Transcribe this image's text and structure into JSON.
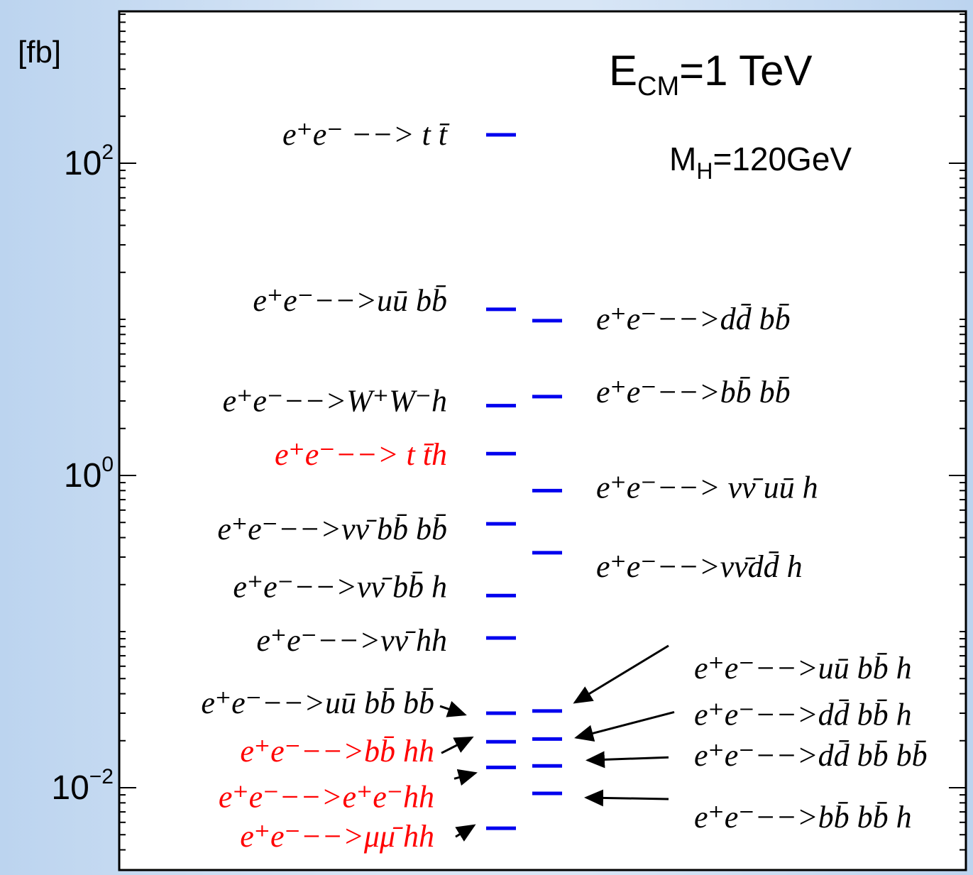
{
  "chart_data": {
    "type": "scatter",
    "yscale": "log",
    "ylim": [
      0.004,
      400
    ],
    "yunit": "[fb]",
    "yticks": [
      {
        "value": 100,
        "base": "10",
        "exp": "2"
      },
      {
        "value": 1,
        "base": "10",
        "exp": "0"
      },
      {
        "value": 0.01,
        "base": "10",
        "exp": "−2"
      }
    ],
    "annotations": {
      "ecm": {
        "main": "E",
        "sub": "CM",
        "rest": "=1 TeV"
      },
      "mh": {
        "main": "M",
        "sub": "H",
        "rest": "=120GeV"
      }
    },
    "colors": {
      "marker": "#0000ee",
      "text": "#000000",
      "highlight": "#ff0000",
      "arrow": "#000000"
    },
    "processes": [
      {
        "column": "left",
        "value": 152,
        "label": "e⁺e⁻ −−> t t̄",
        "highlight": false,
        "arrow": false
      },
      {
        "column": "left",
        "value": 11.6,
        "label": "e⁺e⁻−−>uū bb̄",
        "highlight": false,
        "arrow": false
      },
      {
        "column": "left",
        "value": 2.8,
        "label": "e⁺e⁻−−>W⁺W⁻h",
        "highlight": false,
        "arrow": false
      },
      {
        "column": "left",
        "value": 1.38,
        "label": "e⁺e⁻−−> t t̄h",
        "highlight": true,
        "arrow": false
      },
      {
        "column": "left",
        "value": 0.49,
        "label": "e⁺e⁻−−>νν̄ bb̄ bb̄",
        "highlight": false,
        "arrow": false
      },
      {
        "column": "left",
        "value": 0.17,
        "label": "e⁺e⁻−−>νν̄ bb̄ h",
        "highlight": false,
        "arrow": false
      },
      {
        "column": "left",
        "value": 0.091,
        "label": "e⁺e⁻−−>νν̄ hh",
        "highlight": false,
        "arrow": false
      },
      {
        "column": "left",
        "value": 0.03,
        "label": "e⁺e⁻−−>uū  bb̄ bb̄",
        "highlight": false,
        "arrow": true
      },
      {
        "column": "left",
        "value": 0.0197,
        "label": "e⁺e⁻−−>bb̄ hh",
        "highlight": true,
        "arrow": true
      },
      {
        "column": "left",
        "value": 0.0135,
        "label": "e⁺e⁻−−>e⁺e⁻hh",
        "highlight": true,
        "arrow": true
      },
      {
        "column": "left",
        "value": 0.0055,
        "label": "e⁺e⁻−−>μμ̄  hh",
        "highlight": true,
        "arrow": true
      },
      {
        "column": "right",
        "value": 9.8,
        "label": "e⁺e⁻−−>dd̄ bb̄",
        "highlight": false,
        "arrow": false
      },
      {
        "column": "right",
        "value": 3.2,
        "label": "e⁺e⁻−−>bb̄ bb̄",
        "highlight": false,
        "arrow": false
      },
      {
        "column": "right",
        "value": 0.8,
        "label": "e⁺e⁻−−> νν̄ uū h",
        "highlight": false,
        "arrow": false
      },
      {
        "column": "right",
        "value": 0.32,
        "label": "e⁺e⁻−−>νν̄dd̄ h",
        "highlight": false,
        "arrow": false
      },
      {
        "column": "right",
        "value": 0.031,
        "label": "e⁺e⁻−−>uū bb̄ h",
        "highlight": false,
        "arrow": true
      },
      {
        "column": "right",
        "value": 0.0205,
        "label": "e⁺e⁻−−>dd̄ bb̄ h",
        "highlight": false,
        "arrow": true
      },
      {
        "column": "right",
        "value": 0.0138,
        "label": "e⁺e⁻−−>dd̄ bb̄ bb̄",
        "highlight": false,
        "arrow": true
      },
      {
        "column": "right",
        "value": 0.0092,
        "label": "e⁺e⁻−−>bb̄ bb̄ h",
        "highlight": false,
        "arrow": true
      }
    ]
  }
}
